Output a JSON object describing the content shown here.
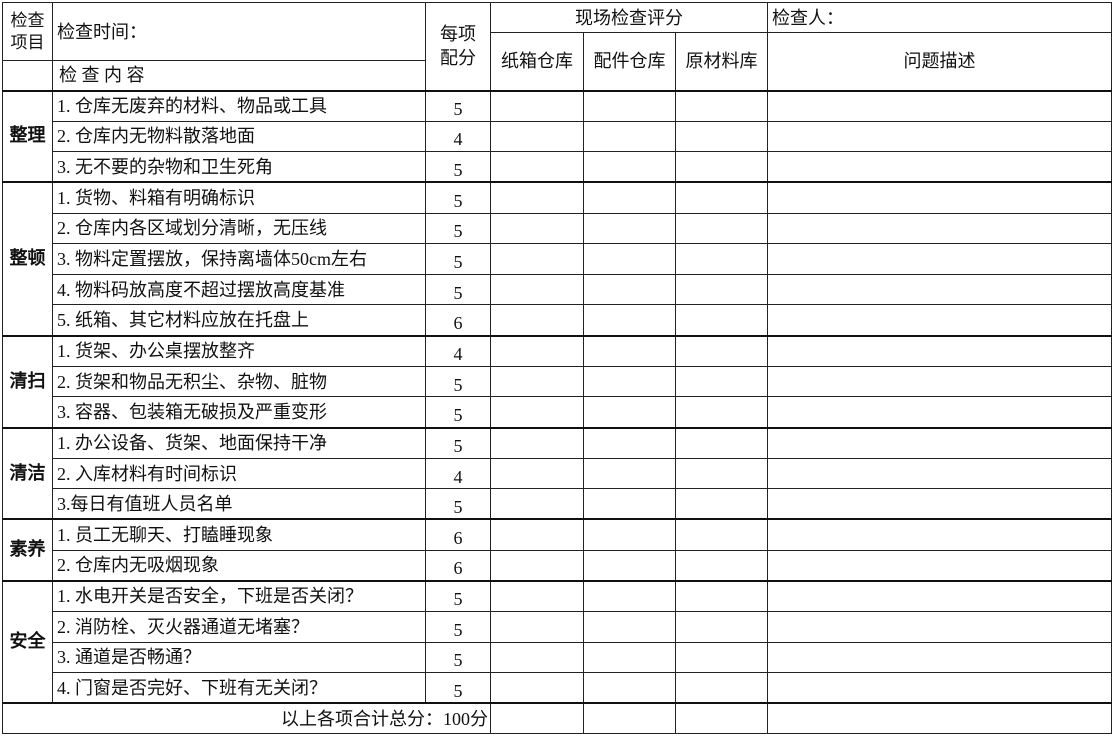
{
  "header": {
    "item_label": "检查\n项目",
    "time_label": "检查时间：",
    "content_label": "检 查 内 容",
    "score_label": "每项\n配分",
    "onsite_label": "现场检查评分",
    "inspector_label": "检查人：",
    "locations": [
      "纸箱仓库",
      "配件仓库",
      "原材料库"
    ],
    "desc_label": "问题描述"
  },
  "groups": [
    {
      "name": "整理",
      "items": [
        {
          "text": "1. 仓库无废弃的材料、物品或工具",
          "score": "5"
        },
        {
          "text": "2. 仓库内无物料散落地面",
          "score": "4"
        },
        {
          "text": "3. 无不要的杂物和卫生死角",
          "score": "5"
        }
      ]
    },
    {
      "name": "整顿",
      "items": [
        {
          "text": "1. 货物、料箱有明确标识",
          "score": "5"
        },
        {
          "text": "2. 仓库内各区域划分清晰，无压线",
          "score": "5"
        },
        {
          "text": "3. 物料定置摆放，保持离墙体50cm左右",
          "score": "5"
        },
        {
          "text": "4. 物料码放高度不超过摆放高度基准",
          "score": "5"
        },
        {
          "text": "5. 纸箱、其它材料应放在托盘上",
          "score": "6"
        }
      ]
    },
    {
      "name": "清扫",
      "items": [
        {
          "text": "1. 货架、办公桌摆放整齐",
          "score": "4"
        },
        {
          "text": "2. 货架和物品无积尘、杂物、脏物",
          "score": "5"
        },
        {
          "text": "3. 容器、包装箱无破损及严重变形",
          "score": "5"
        }
      ]
    },
    {
      "name": "清洁",
      "items": [
        {
          "text": "1. 办公设备、货架、地面保持干净",
          "score": "5"
        },
        {
          "text": "2. 入库材料有时间标识",
          "score": "4"
        },
        {
          "text": "3.每日有值班人员名单",
          "score": "5"
        }
      ]
    },
    {
      "name": "素养",
      "items": [
        {
          "text": "1. 员工无聊天、打瞌睡现象",
          "score": "6"
        },
        {
          "text": "2. 仓库内无吸烟现象",
          "score": "6"
        }
      ]
    },
    {
      "name": "安全",
      "items": [
        {
          "text": "1. 水电开关是否安全，下班是否关闭？",
          "score": "5"
        },
        {
          "text": "2. 消防栓、灭火器通道无堵塞？",
          "score": "5"
        },
        {
          "text": "3. 通道是否畅通？",
          "score": "5"
        },
        {
          "text": "4. 门窗是否完好、下班有无关闭？",
          "score": "5"
        }
      ]
    }
  ],
  "footer": {
    "total_label": "以上各项合计总分：100分"
  }
}
